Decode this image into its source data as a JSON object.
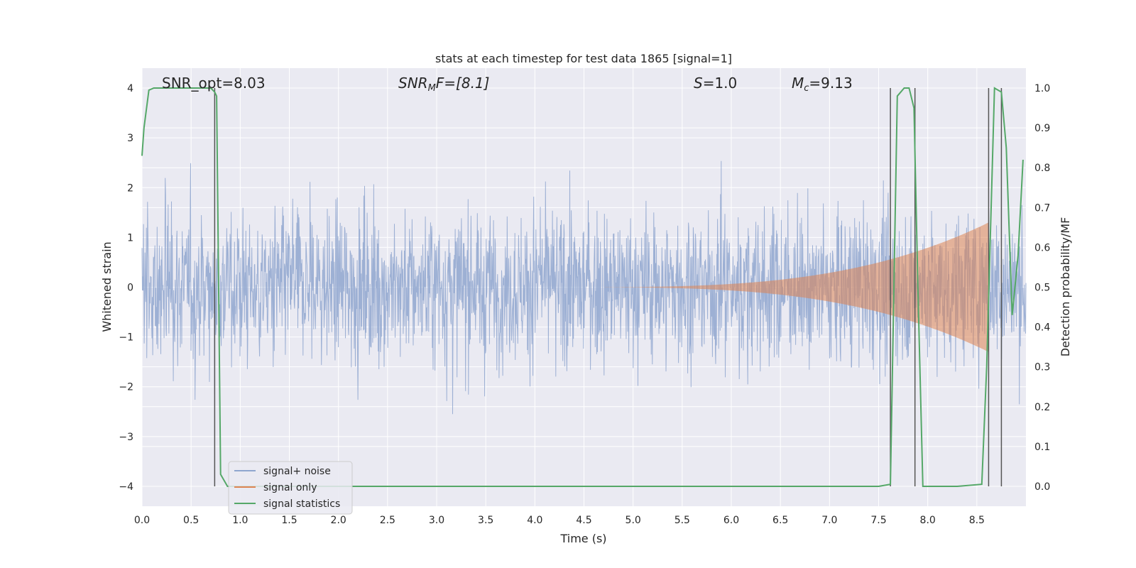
{
  "chart_data": {
    "type": "line",
    "title": "stats at each timestep for test data 1865 [signal=1]",
    "xlabel": "Time (s)",
    "ylabel": "Whitened strain",
    "ylabel_right": "Detection probability/MF",
    "xlim": [
      0,
      9.0
    ],
    "ylim": [
      -4.4,
      4.4
    ],
    "ylim_right": [
      -0.05,
      1.05
    ],
    "xticks": [
      "0.0",
      "0.5",
      "1.0",
      "1.5",
      "2.0",
      "2.5",
      "3.0",
      "3.5",
      "4.0",
      "4.5",
      "5.0",
      "5.5",
      "6.0",
      "6.5",
      "7.0",
      "7.5",
      "8.0",
      "8.5"
    ],
    "yticks": [
      "4",
      "3",
      "2",
      "1",
      "0",
      "−1",
      "−2",
      "−3",
      "−4"
    ],
    "yticks_right": [
      "1.0",
      "0.9",
      "0.8",
      "0.7",
      "0.6",
      "0.5",
      "0.4",
      "0.3",
      "0.2",
      "0.1",
      "0.0"
    ],
    "grid": true,
    "legend_position": "lower-left",
    "annotations": {
      "snr_opt": "SNR_opt=8.03",
      "snr_mf_label": "SNR",
      "snr_mf_sub": "M",
      "snr_mf_rest": "F=[8.1]",
      "s_label": "S",
      "s_rest": "=1.0",
      "mc_label": "M",
      "mc_sub": "c",
      "mc_rest": "=9.13"
    },
    "series": [
      {
        "name": "signal+ noise",
        "color": "#8fa6cf",
        "description_values": "whitened noise, amplitude mostly within ±2.5"
      },
      {
        "name": "signal only",
        "color": "#dd8452",
        "chirp": {
          "start": 4.3,
          "end": 8.62,
          "max_amplitude": 1.3
        }
      },
      {
        "name": "signal statistics",
        "color": "#55a868",
        "axis": "right",
        "x": [
          0.0,
          0.02,
          0.07,
          0.12,
          0.2,
          0.4,
          0.6,
          0.7,
          0.74,
          0.76,
          0.8,
          0.87,
          1.0,
          2.0,
          4.0,
          6.0,
          7.0,
          7.5,
          7.62,
          7.69,
          7.76,
          7.81,
          7.86,
          7.9,
          7.95,
          7.99,
          8.1,
          8.3,
          8.55,
          8.6,
          8.68,
          8.75,
          8.8,
          8.86,
          8.92,
          8.97
        ],
        "y": [
          0.83,
          0.9,
          0.995,
          1.0,
          1.0,
          1.0,
          1.0,
          1.0,
          0.99,
          0.98,
          0.03,
          0.0,
          0.0,
          0.0,
          0.0,
          0.0,
          0.0,
          0.0,
          0.005,
          0.98,
          1.0,
          1.0,
          0.95,
          0.5,
          0.0,
          0.0,
          0.0,
          0.0,
          0.005,
          0.3,
          1.0,
          0.99,
          0.85,
          0.43,
          0.58,
          0.82
        ]
      }
    ],
    "vlines": [
      0.74,
      7.62,
      7.87,
      8.62,
      8.75
    ]
  }
}
